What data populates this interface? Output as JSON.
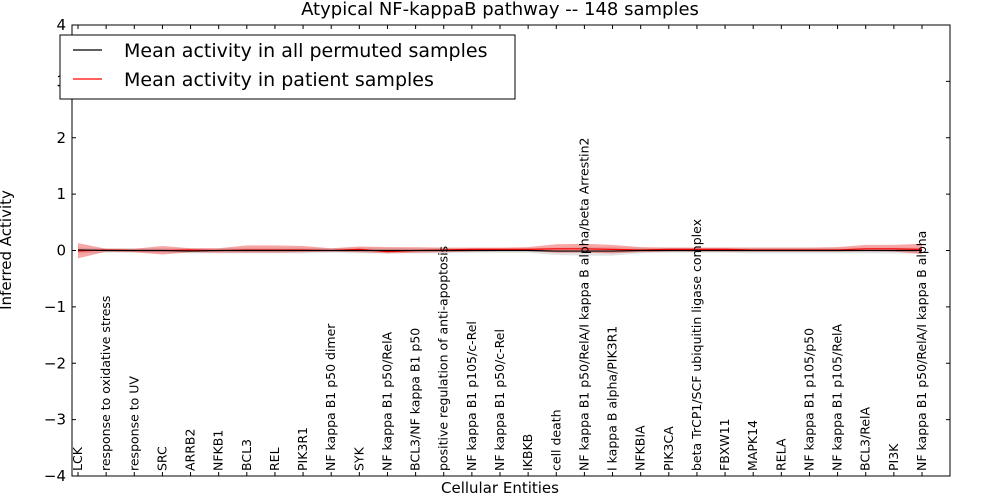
{
  "chart_data": {
    "type": "line",
    "title": "Atypical NF-kappaB pathway -- 148 samples",
    "xlabel": "Cellular Entities",
    "ylabel": "Inferred Activity",
    "ylim": [
      -4,
      4
    ],
    "yticks": [
      4,
      3,
      2,
      1,
      0,
      -1,
      -2,
      -3,
      -4
    ],
    "ytick_labels": [
      "4",
      "3",
      "2",
      "1",
      "0",
      "−1",
      "−2",
      "−3",
      "−4"
    ],
    "legend": {
      "position": "top-left",
      "entries": [
        {
          "label": "Mean activity in all permuted samples",
          "color": "#000000"
        },
        {
          "label": "Mean activity in patient samples",
          "color": "#ff0000"
        }
      ]
    },
    "categories": [
      "LCK",
      "response to oxidative stress",
      "response to UV",
      "SRC",
      "ARRB2",
      "NFKB1",
      "BCL3",
      "REL",
      "PIK3R1",
      "NF kappa B1 p50 dimer",
      "SYK",
      "NF kappa B1 p50/RelA",
      "BCL3/NF kappa B1 p50",
      "positive regulation of anti-apoptosis",
      "NF kappa B1 p105/c-Rel",
      "NF kappa B1 p50/c-Rel",
      "IKBKB",
      "cell death",
      "NF kappa B1 p50/RelA/I kappa B alpha/beta Arrestin2",
      "I kappa B alpha/PIK3R1",
      "NFKBIA",
      "PIK3CA",
      "beta TrCP1/SCF ubiquitin ligase complex",
      "FBXW11",
      "MAPK14",
      "RELA",
      "NF kappa B1 p105/p50",
      "NF kappa B1 p105/RelA",
      "BCL3/RelA",
      "PI3K",
      "NF kappa B1 p50/RelA/I kappa B alpha"
    ],
    "series": [
      {
        "name": "Mean activity in all permuted samples",
        "color": "#000000",
        "values": [
          0.01,
          0.0,
          0.0,
          0.0,
          -0.01,
          0.0,
          0.0,
          0.0,
          0.0,
          0.0,
          0.0,
          0.0,
          0.0,
          0.0,
          0.0,
          0.0,
          0.0,
          -0.01,
          -0.01,
          -0.01,
          0.0,
          0.0,
          0.0,
          0.0,
          0.0,
          0.0,
          0.0,
          0.0,
          0.0,
          0.0,
          0.0
        ],
        "band_lower": [
          -0.05,
          -0.04,
          -0.04,
          -0.04,
          -0.05,
          -0.05,
          -0.05,
          -0.05,
          -0.05,
          -0.04,
          -0.05,
          -0.05,
          -0.05,
          -0.05,
          -0.04,
          -0.04,
          -0.04,
          -0.08,
          -0.09,
          -0.09,
          -0.05,
          -0.04,
          -0.04,
          -0.04,
          -0.05,
          -0.05,
          -0.05,
          -0.05,
          -0.05,
          -0.05,
          -0.06
        ],
        "band_upper": [
          0.05,
          0.04,
          0.04,
          0.04,
          0.04,
          0.04,
          0.05,
          0.05,
          0.05,
          0.04,
          0.05,
          0.05,
          0.04,
          0.04,
          0.04,
          0.04,
          0.04,
          0.05,
          0.06,
          0.06,
          0.05,
          0.05,
          0.05,
          0.05,
          0.05,
          0.05,
          0.05,
          0.05,
          0.05,
          0.05,
          0.05
        ]
      },
      {
        "name": "Mean activity in patient samples",
        "color": "#ff0000",
        "values": [
          -0.01,
          0.01,
          0.0,
          0.0,
          0.01,
          0.0,
          0.01,
          0.01,
          0.01,
          0.0,
          0.02,
          -0.02,
          0.0,
          0.01,
          0.02,
          0.02,
          0.02,
          0.03,
          0.03,
          0.02,
          0.01,
          0.02,
          0.02,
          0.02,
          0.01,
          0.01,
          0.01,
          0.01,
          0.03,
          0.03,
          0.02
        ],
        "band_lower": [
          -0.14,
          -0.02,
          -0.03,
          -0.07,
          -0.03,
          -0.04,
          -0.04,
          -0.04,
          -0.03,
          -0.02,
          -0.03,
          -0.05,
          -0.04,
          -0.03,
          -0.02,
          -0.01,
          -0.01,
          -0.04,
          -0.04,
          -0.05,
          -0.03,
          -0.02,
          -0.02,
          -0.02,
          -0.02,
          -0.02,
          -0.02,
          -0.02,
          -0.01,
          -0.02,
          -0.06
        ],
        "band_upper": [
          0.13,
          0.03,
          0.03,
          0.08,
          0.04,
          0.04,
          0.09,
          0.09,
          0.08,
          0.04,
          0.07,
          0.06,
          0.06,
          0.05,
          0.05,
          0.05,
          0.06,
          0.11,
          0.12,
          0.1,
          0.06,
          0.05,
          0.05,
          0.05,
          0.05,
          0.05,
          0.05,
          0.06,
          0.1,
          0.1,
          0.12
        ]
      }
    ]
  }
}
